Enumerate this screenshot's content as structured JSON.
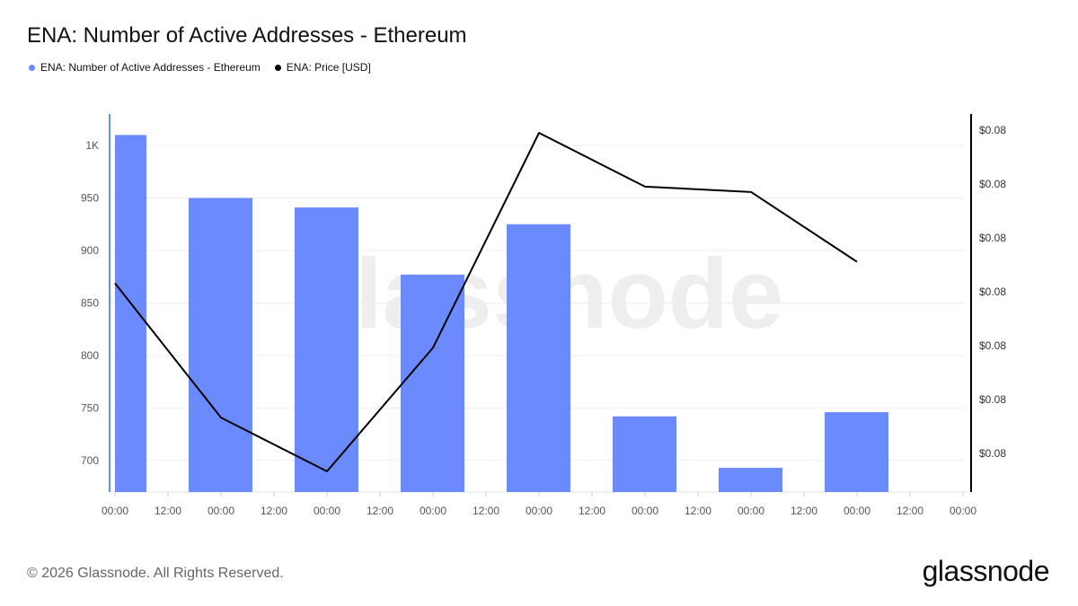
{
  "header": {
    "title": "ENA: Number of Active Addresses - Ethereum"
  },
  "legend": [
    {
      "label": "ENA: Number of Active Addresses - Ethereum",
      "color": "#6b8afd"
    },
    {
      "label": "ENA: Price [USD]",
      "color": "#000000"
    }
  ],
  "watermark": "glassnode",
  "footer": {
    "copyright": "© 2026 Glassnode. All Rights Reserved.",
    "logo": "glassnode"
  },
  "chart_data": {
    "type": "bar+line",
    "x_tick_labels": [
      "00:00",
      "12:00",
      "00:00",
      "12:00",
      "00:00",
      "12:00",
      "00:00",
      "12:00",
      "00:00",
      "12:00",
      "00:00",
      "12:00",
      "00:00",
      "12:00",
      "00:00",
      "12:00",
      "00:00"
    ],
    "left_axis": {
      "tick_values": [
        700,
        750,
        800,
        850,
        900,
        950,
        1000
      ],
      "tick_labels": [
        "700",
        "750",
        "800",
        "850",
        "900",
        "950",
        "1K"
      ],
      "range": [
        670,
        1030
      ],
      "color": "#6b8afd"
    },
    "right_axis": {
      "tick_labels": [
        "$0.08",
        "$0.08",
        "$0.08",
        "$0.08",
        "$0.08",
        "$0.08",
        "$0.08"
      ],
      "color": "#000000"
    },
    "grid": true,
    "series": [
      {
        "name": "ENA: Number of Active Addresses - Ethereum",
        "type": "bar",
        "color": "#6b8afd",
        "values": [
          1010,
          950,
          941,
          877,
          925,
          742,
          693,
          746
        ]
      },
      {
        "name": "ENA: Price [USD]",
        "type": "line",
        "color": "#000000",
        "values": [
          0.0811,
          0.0786,
          0.0776,
          0.0799,
          0.0839,
          0.0829,
          0.0828,
          0.0815
        ]
      }
    ]
  }
}
